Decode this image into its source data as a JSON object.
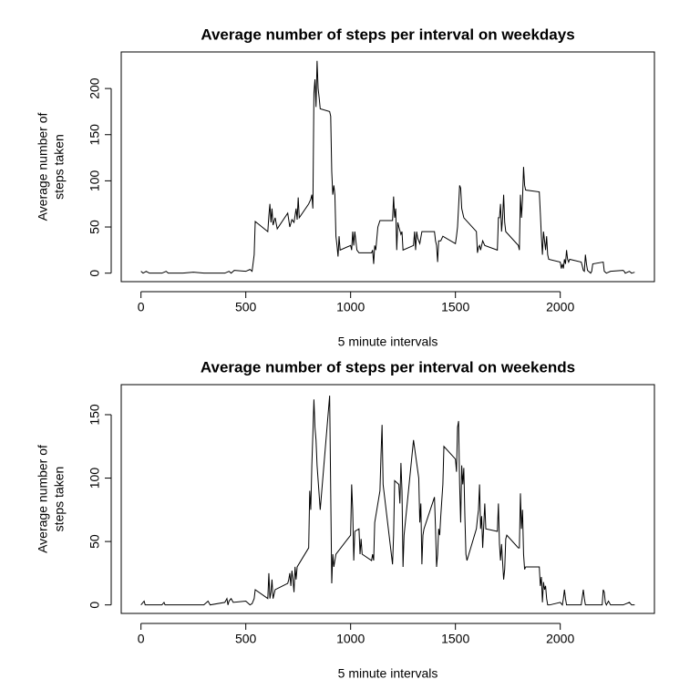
{
  "chart_data": [
    {
      "type": "line",
      "title": "Average number of steps per interval on weekdays",
      "xlabel": "5 minute intervals",
      "ylabel": [
        "Average number of",
        "steps taken"
      ],
      "xlim": [
        -94.2,
        2449.2
      ],
      "ylim": [
        -9.2,
        239.6
      ],
      "xticks": [
        0,
        500,
        1000,
        1500,
        2000
      ],
      "yticks": [
        0,
        50,
        100,
        150,
        200
      ],
      "series": [
        {
          "color": "#000000",
          "x": [
            0,
            10,
            25,
            40,
            100,
            120,
            130,
            200,
            250,
            300,
            400,
            420,
            430,
            445,
            500,
            520,
            530,
            540,
            545,
            605,
            610,
            615,
            620,
            625,
            630,
            640,
            650,
            700,
            710,
            720,
            730,
            740,
            745,
            750,
            755,
            800,
            810,
            815,
            820,
            825,
            830,
            835,
            840,
            845,
            850,
            855,
            900,
            905,
            910,
            915,
            920,
            925,
            930,
            935,
            940,
            945,
            950,
            1000,
            1005,
            1010,
            1015,
            1020,
            1030,
            1040,
            1100,
            1105,
            1110,
            1115,
            1120,
            1130,
            1140,
            1200,
            1205,
            1210,
            1215,
            1220,
            1225,
            1230,
            1240,
            1245,
            1250,
            1300,
            1305,
            1310,
            1315,
            1320,
            1330,
            1340,
            1400,
            1405,
            1410,
            1415,
            1420,
            1430,
            1440,
            1500,
            1505,
            1510,
            1515,
            1520,
            1525,
            1530,
            1540,
            1600,
            1605,
            1610,
            1615,
            1620,
            1630,
            1640,
            1700,
            1705,
            1710,
            1715,
            1720,
            1725,
            1730,
            1735,
            1740,
            1800,
            1805,
            1810,
            1815,
            1820,
            1825,
            1830,
            1835,
            1900,
            1905,
            1910,
            1915,
            1920,
            1925,
            1930,
            1935,
            1940,
            1945,
            2000,
            2005,
            2010,
            2015,
            2020,
            2025,
            2030,
            2035,
            2040,
            2045,
            2100,
            2105,
            2110,
            2115,
            2120,
            2125,
            2130,
            2145,
            2150,
            2155,
            2205,
            2210,
            2220,
            2240,
            2300,
            2305,
            2310,
            2330,
            2340,
            2355
          ],
          "values": [
            2,
            0,
            2,
            0,
            0,
            2,
            0,
            0,
            1,
            0,
            0,
            2,
            0,
            3,
            2,
            4,
            2,
            20,
            56,
            45,
            62,
            75,
            55,
            70,
            52,
            60,
            48,
            65,
            50,
            58,
            55,
            70,
            58,
            82,
            60,
            75,
            80,
            85,
            70,
            195,
            210,
            180,
            230,
            200,
            190,
            178,
            175,
            170,
            110,
            85,
            95,
            85,
            40,
            30,
            18,
            40,
            25,
            30,
            25,
            45,
            30,
            45,
            25,
            22,
            22,
            25,
            10,
            30,
            25,
            50,
            57,
            57,
            83,
            60,
            70,
            25,
            55,
            50,
            42,
            45,
            25,
            30,
            45,
            25,
            45,
            38,
            32,
            45,
            45,
            35,
            30,
            12,
            35,
            35,
            40,
            32,
            40,
            50,
            72,
            95,
            92,
            70,
            60,
            45,
            22,
            28,
            30,
            25,
            35,
            30,
            25,
            60,
            60,
            75,
            45,
            60,
            85,
            55,
            45,
            30,
            25,
            85,
            60,
            80,
            115,
            95,
            90,
            88,
            65,
            40,
            20,
            45,
            35,
            25,
            40,
            20,
            15,
            12,
            5,
            10,
            5,
            15,
            10,
            25,
            15,
            12,
            15,
            12,
            8,
            3,
            2,
            20,
            10,
            3,
            0,
            2,
            10,
            12,
            2,
            0,
            2,
            3,
            2,
            0,
            2,
            0,
            1
          ]
        }
      ]
    },
    {
      "type": "line",
      "title": "Average number of steps per interval on weekends",
      "xlabel": "5 minute intervals",
      "ylabel": [
        "Average number of",
        "steps taken"
      ],
      "xlim": [
        -94.2,
        2449.2
      ],
      "ylim": [
        -6.7,
        173.7
      ],
      "xticks": [
        0,
        500,
        1000,
        1500,
        2000
      ],
      "yticks": [
        0,
        50,
        100,
        150
      ],
      "series": [
        {
          "color": "#000000",
          "x": [
            0,
            15,
            20,
            100,
            110,
            115,
            200,
            300,
            320,
            330,
            400,
            410,
            415,
            420,
            430,
            440,
            500,
            520,
            530,
            540,
            545,
            605,
            610,
            615,
            620,
            625,
            630,
            640,
            700,
            705,
            710,
            715,
            720,
            725,
            730,
            735,
            740,
            745,
            800,
            805,
            810,
            815,
            820,
            825,
            830,
            835,
            840,
            855,
            900,
            905,
            910,
            915,
            920,
            930,
            1000,
            1005,
            1010,
            1015,
            1020,
            1040,
            1045,
            1050,
            1055,
            1100,
            1105,
            1110,
            1115,
            1120,
            1140,
            1145,
            1150,
            1155,
            1200,
            1205,
            1210,
            1230,
            1235,
            1240,
            1245,
            1250,
            1255,
            1300,
            1325,
            1330,
            1335,
            1340,
            1345,
            1350,
            1400,
            1405,
            1410,
            1415,
            1420,
            1425,
            1430,
            1440,
            1445,
            1500,
            1505,
            1510,
            1515,
            1520,
            1525,
            1530,
            1535,
            1540,
            1545,
            1550,
            1555,
            1600,
            1605,
            1610,
            1615,
            1620,
            1625,
            1630,
            1640,
            1645,
            1700,
            1705,
            1710,
            1715,
            1720,
            1730,
            1735,
            1740,
            1745,
            1800,
            1805,
            1810,
            1815,
            1820,
            1825,
            1830,
            1835,
            1840,
            1900,
            1905,
            1910,
            1915,
            1920,
            1925,
            1930,
            1935,
            1940,
            1950,
            2000,
            2005,
            2010,
            2015,
            2020,
            2025,
            2030,
            2100,
            2110,
            2115,
            2120,
            2200,
            2205,
            2210,
            2215,
            2220,
            2230,
            2240,
            2300,
            2330,
            2340,
            2355
          ],
          "values": [
            0,
            3,
            0,
            0,
            2,
            0,
            0,
            0,
            3,
            0,
            2,
            5,
            0,
            3,
            5,
            2,
            3,
            0,
            1,
            5,
            12,
            5,
            25,
            5,
            10,
            20,
            5,
            12,
            17,
            20,
            25,
            15,
            27,
            20,
            10,
            30,
            20,
            30,
            45,
            90,
            75,
            110,
            135,
            162,
            140,
            130,
            110,
            75,
            165,
            90,
            17,
            40,
            30,
            40,
            55,
            95,
            75,
            35,
            58,
            60,
            40,
            52,
            40,
            35,
            40,
            35,
            65,
            70,
            90,
            118,
            142,
            95,
            32,
            55,
            98,
            95,
            80,
            112,
            90,
            30,
            55,
            130,
            100,
            65,
            80,
            32,
            55,
            60,
            85,
            60,
            30,
            40,
            60,
            55,
            70,
            95,
            125,
            115,
            105,
            140,
            145,
            95,
            65,
            110,
            95,
            108,
            70,
            40,
            35,
            60,
            68,
            75,
            95,
            60,
            70,
            45,
            80,
            60,
            58,
            80,
            48,
            35,
            48,
            20,
            28,
            52,
            55,
            45,
            45,
            88,
            60,
            75,
            40,
            28,
            30,
            30,
            30,
            15,
            22,
            2,
            18,
            12,
            15,
            5,
            0,
            0,
            2,
            1,
            0,
            5,
            12,
            5,
            0,
            0,
            12,
            5,
            0,
            0,
            12,
            10,
            2,
            0,
            3,
            0,
            0,
            2,
            0,
            0
          ]
        }
      ]
    }
  ]
}
